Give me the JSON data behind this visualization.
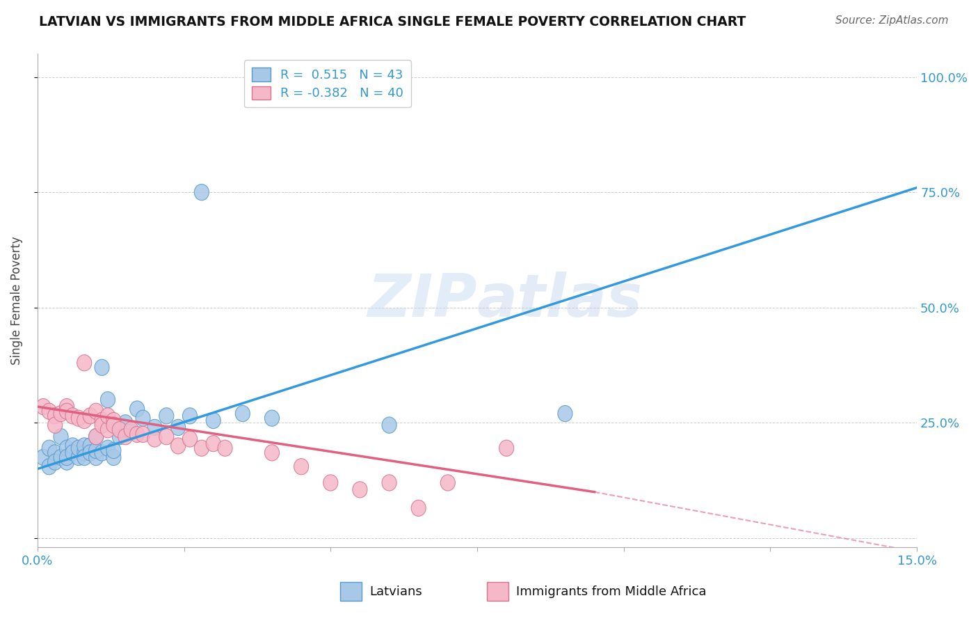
{
  "title": "LATVIAN VS IMMIGRANTS FROM MIDDLE AFRICA SINGLE FEMALE POVERTY CORRELATION CHART",
  "source": "Source: ZipAtlas.com",
  "ylabel": "Single Female Poverty",
  "xlim": [
    0.0,
    0.15
  ],
  "ylim": [
    -0.02,
    1.05
  ],
  "xticks": [
    0.0,
    0.025,
    0.05,
    0.075,
    0.1,
    0.125,
    0.15
  ],
  "xticklabels": [
    "0.0%",
    "",
    "",
    "",
    "",
    "",
    "15.0%"
  ],
  "yticks": [
    0.0,
    0.25,
    0.5,
    0.75,
    1.0
  ],
  "yticklabels": [
    "",
    "25.0%",
    "50.0%",
    "75.0%",
    "100.0%"
  ],
  "latvian_color": "#a8c8e8",
  "latvian_edge_color": "#5599cc",
  "immigrant_color": "#f5b8c8",
  "immigrant_edge_color": "#d97090",
  "trend_latvian_color": "#3399dd",
  "trend_immigrant_color": "#e06080",
  "R_latvian": 0.515,
  "N_latvian": 43,
  "R_immigrant": -0.382,
  "N_immigrant": 40,
  "background_color": "#ffffff",
  "trend_latvian_x0": 0.0,
  "trend_latvian_y0": 0.15,
  "trend_latvian_x1": 0.15,
  "trend_latvian_y1": 0.76,
  "trend_immigrant_x0": 0.0,
  "trend_immigrant_y0": 0.285,
  "trend_immigrant_x1_solid": 0.095,
  "trend_immigrant_y1_solid": 0.1,
  "trend_immigrant_x1_dash": 0.15,
  "trend_immigrant_y1_dash": -0.03,
  "latvian_points": [
    [
      0.001,
      0.175
    ],
    [
      0.002,
      0.195
    ],
    [
      0.002,
      0.155
    ],
    [
      0.003,
      0.185
    ],
    [
      0.003,
      0.165
    ],
    [
      0.004,
      0.175
    ],
    [
      0.004,
      0.22
    ],
    [
      0.005,
      0.165
    ],
    [
      0.005,
      0.195
    ],
    [
      0.005,
      0.175
    ],
    [
      0.006,
      0.2
    ],
    [
      0.006,
      0.185
    ],
    [
      0.007,
      0.175
    ],
    [
      0.007,
      0.195
    ],
    [
      0.008,
      0.185
    ],
    [
      0.008,
      0.2
    ],
    [
      0.008,
      0.175
    ],
    [
      0.009,
      0.2
    ],
    [
      0.009,
      0.185
    ],
    [
      0.01,
      0.175
    ],
    [
      0.01,
      0.19
    ],
    [
      0.01,
      0.22
    ],
    [
      0.011,
      0.37
    ],
    [
      0.011,
      0.185
    ],
    [
      0.012,
      0.3
    ],
    [
      0.012,
      0.195
    ],
    [
      0.013,
      0.175
    ],
    [
      0.013,
      0.19
    ],
    [
      0.014,
      0.22
    ],
    [
      0.015,
      0.25
    ],
    [
      0.016,
      0.23
    ],
    [
      0.017,
      0.28
    ],
    [
      0.018,
      0.26
    ],
    [
      0.02,
      0.24
    ],
    [
      0.022,
      0.265
    ],
    [
      0.024,
      0.24
    ],
    [
      0.026,
      0.265
    ],
    [
      0.03,
      0.255
    ],
    [
      0.035,
      0.27
    ],
    [
      0.04,
      0.26
    ],
    [
      0.028,
      0.75
    ],
    [
      0.06,
      0.245
    ],
    [
      0.09,
      0.27
    ]
  ],
  "immigrant_points": [
    [
      0.001,
      0.285
    ],
    [
      0.002,
      0.275
    ],
    [
      0.003,
      0.265
    ],
    [
      0.003,
      0.245
    ],
    [
      0.004,
      0.27
    ],
    [
      0.005,
      0.285
    ],
    [
      0.005,
      0.275
    ],
    [
      0.006,
      0.265
    ],
    [
      0.007,
      0.26
    ],
    [
      0.008,
      0.255
    ],
    [
      0.008,
      0.38
    ],
    [
      0.009,
      0.265
    ],
    [
      0.01,
      0.275
    ],
    [
      0.01,
      0.22
    ],
    [
      0.011,
      0.255
    ],
    [
      0.011,
      0.245
    ],
    [
      0.012,
      0.235
    ],
    [
      0.012,
      0.265
    ],
    [
      0.013,
      0.255
    ],
    [
      0.013,
      0.245
    ],
    [
      0.014,
      0.235
    ],
    [
      0.015,
      0.22
    ],
    [
      0.016,
      0.235
    ],
    [
      0.017,
      0.225
    ],
    [
      0.018,
      0.225
    ],
    [
      0.02,
      0.215
    ],
    [
      0.022,
      0.22
    ],
    [
      0.024,
      0.2
    ],
    [
      0.026,
      0.215
    ],
    [
      0.028,
      0.195
    ],
    [
      0.03,
      0.205
    ],
    [
      0.032,
      0.195
    ],
    [
      0.04,
      0.185
    ],
    [
      0.045,
      0.155
    ],
    [
      0.05,
      0.12
    ],
    [
      0.055,
      0.105
    ],
    [
      0.06,
      0.12
    ],
    [
      0.065,
      0.065
    ],
    [
      0.07,
      0.12
    ],
    [
      0.08,
      0.195
    ]
  ]
}
